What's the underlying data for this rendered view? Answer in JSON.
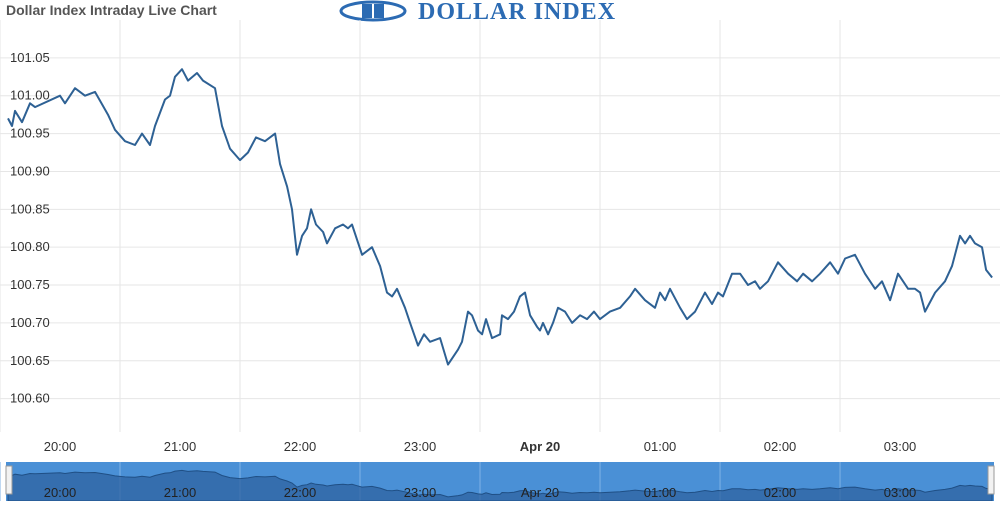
{
  "chart_data": {
    "type": "line",
    "title": "Dollar Index Intraday Live Chart",
    "logo": "DOLLAR INDEX",
    "xlim": [
      20,
      28.333
    ],
    "ylim": [
      100.585,
      101.1
    ],
    "grid": true,
    "xticks": [
      {
        "value": 20,
        "label": "20:00"
      },
      {
        "value": 21,
        "label": "21:00"
      },
      {
        "value": 22,
        "label": "22:00"
      },
      {
        "value": 23,
        "label": "23:00"
      },
      {
        "value": 24,
        "label": "Apr 20"
      },
      {
        "value": 25,
        "label": "01:00"
      },
      {
        "value": 26,
        "label": "02:00"
      },
      {
        "value": 27,
        "label": "03:00"
      }
    ],
    "yticks": [
      {
        "value": 100.6,
        "label": "100.60"
      },
      100.65,
      {
        "value": 100.7,
        "label": "100.70"
      },
      100.75,
      {
        "value": 100.8,
        "label": "100.80"
      },
      100.85,
      {
        "value": 100.9,
        "label": "100.90"
      },
      100.95,
      {
        "value": 101,
        "label": "101.00"
      },
      101.05
    ],
    "series": [
      {
        "name": "Dollar Index",
        "color": "#2e6194",
        "x": [
          20.067,
          20.1,
          20.125,
          20.183,
          20.25,
          20.292,
          20.5,
          20.542,
          20.625,
          20.708,
          20.792,
          20.9,
          20.958,
          21.042,
          21.125,
          21.183,
          21.25,
          21.292,
          21.375,
          21.417,
          21.458,
          21.517,
          21.567,
          21.642,
          21.692,
          21.792,
          21.85,
          21.917,
          22,
          22.067,
          22.133,
          22.208,
          22.292,
          22.333,
          22.392,
          22.433,
          22.475,
          22.517,
          22.558,
          22.592,
          22.633,
          22.692,
          22.725,
          22.792,
          22.858,
          22.9,
          22.933,
          22.975,
          23.017,
          23.1,
          23.167,
          23.225,
          23.267,
          23.308,
          23.375,
          23.417,
          23.483,
          23.533,
          23.583,
          23.667,
          23.733,
          23.817,
          23.85,
          23.9,
          23.933,
          23.983,
          24.017,
          24.05,
          24.1,
          24.167,
          24.183,
          24.233,
          24.283,
          24.333,
          24.375,
          24.417,
          24.475,
          24.5,
          24.525,
          24.567,
          24.608,
          24.65,
          24.708,
          24.767,
          24.833,
          24.892,
          24.95,
          25,
          25.083,
          25.167,
          25.25,
          25.292,
          25.375,
          25.458,
          25.5,
          25.542,
          25.583,
          25.667,
          25.725,
          25.792,
          25.875,
          25.933,
          25.983,
          26.025,
          26.1,
          26.167,
          26.233,
          26.292,
          26.333,
          26.4,
          26.483,
          26.567,
          26.642,
          26.692,
          26.767,
          26.833,
          26.917,
          26.983,
          27.042,
          27.125,
          27.208,
          27.292,
          27.35,
          27.417,
          27.483,
          27.567,
          27.625,
          27.667,
          27.708,
          27.792,
          27.875,
          27.933,
          28,
          28.042,
          28.083,
          28.125,
          28.183,
          28.217,
          28.267
        ],
        "values": [
          100.97,
          100.96,
          100.98,
          100.965,
          100.99,
          100.985,
          101.0,
          100.99,
          101.01,
          101.0,
          101.005,
          100.975,
          100.955,
          100.94,
          100.935,
          100.95,
          100.935,
          100.96,
          100.995,
          101.0,
          101.025,
          101.035,
          101.02,
          101.03,
          101.02,
          101.01,
          100.96,
          100.93,
          100.915,
          100.925,
          100.945,
          100.94,
          100.95,
          100.91,
          100.88,
          100.85,
          100.79,
          100.815,
          100.825,
          100.85,
          100.83,
          100.82,
          100.805,
          100.825,
          100.83,
          100.825,
          100.83,
          100.81,
          100.79,
          100.8,
          100.775,
          100.74,
          100.735,
          100.745,
          100.72,
          100.7,
          100.67,
          100.685,
          100.675,
          100.68,
          100.645,
          100.665,
          100.675,
          100.715,
          100.71,
          100.69,
          100.685,
          100.705,
          100.68,
          100.685,
          100.71,
          100.705,
          100.715,
          100.735,
          100.74,
          100.71,
          100.695,
          100.69,
          100.7,
          100.685,
          100.7,
          100.72,
          100.715,
          100.7,
          100.71,
          100.705,
          100.715,
          100.705,
          100.715,
          100.72,
          100.735,
          100.745,
          100.73,
          100.72,
          100.74,
          100.73,
          100.745,
          100.72,
          100.705,
          100.715,
          100.74,
          100.725,
          100.74,
          100.735,
          100.765,
          100.765,
          100.75,
          100.755,
          100.745,
          100.755,
          100.78,
          100.765,
          100.755,
          100.765,
          100.755,
          100.765,
          100.78,
          100.765,
          100.785,
          100.79,
          100.765,
          100.745,
          100.755,
          100.73,
          100.765,
          100.745,
          100.745,
          100.74,
          100.715,
          100.74,
          100.755,
          100.775,
          100.815,
          100.805,
          100.815,
          100.805,
          100.8,
          100.77,
          100.76
        ]
      }
    ]
  }
}
